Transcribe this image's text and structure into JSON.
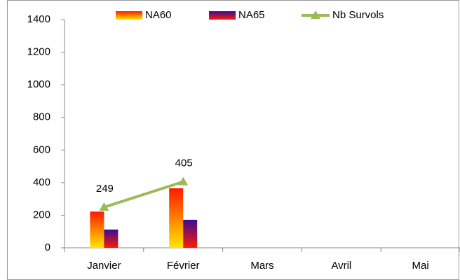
{
  "chart_data": {
    "type": "bar",
    "categories": [
      "Janvier",
      "Février",
      "Mars",
      "Avril",
      "Mai"
    ],
    "series": [
      {
        "name": "NA60",
        "type": "bar",
        "colors": [
          "#ff1a00",
          "#ffe600"
        ],
        "values": [
          222,
          365,
          null,
          null,
          null
        ]
      },
      {
        "name": "NA65",
        "type": "bar",
        "colors": [
          "#3a0a9a",
          "#ff1a00"
        ],
        "values": [
          112,
          172,
          null,
          null,
          null
        ]
      },
      {
        "name": "Nb Survols",
        "type": "line",
        "color": "#9bbb59",
        "values": [
          249,
          405,
          null,
          null,
          null
        ]
      }
    ],
    "ylim": [
      0,
      1400
    ],
    "yticks": [
      0,
      200,
      400,
      600,
      800,
      1000,
      1200,
      1400
    ],
    "grid": false,
    "legend": "top"
  }
}
